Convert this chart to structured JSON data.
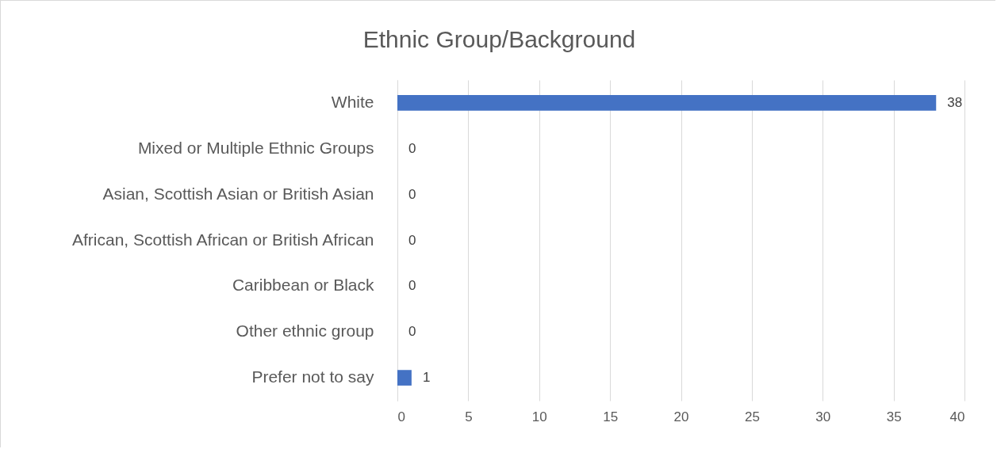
{
  "chart_data": {
    "type": "bar",
    "orientation": "horizontal",
    "title": "Ethnic Group/Background",
    "categories": [
      "White",
      "Mixed or Multiple Ethnic Groups",
      "Asian, Scottish Asian or British Asian",
      "African, Scottish African or British African",
      "Caribbean or Black",
      "Other ethnic group",
      "Prefer not to say"
    ],
    "values": [
      38,
      0,
      0,
      0,
      0,
      0,
      1
    ],
    "color": "#4472c4",
    "xlim": [
      0,
      40
    ],
    "xticks": [
      0,
      5,
      10,
      15,
      20,
      25,
      30,
      35,
      40
    ],
    "grid": "x",
    "data_labels": true
  }
}
